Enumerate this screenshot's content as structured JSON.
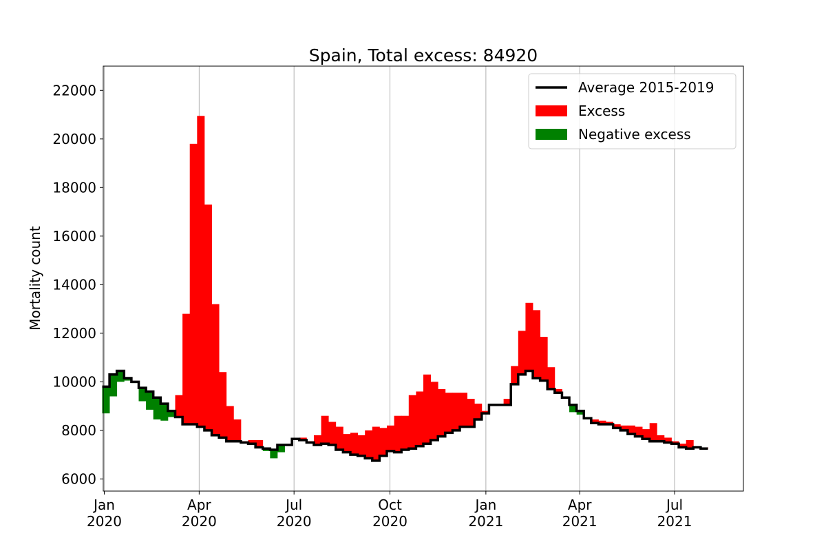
{
  "chart_data": {
    "type": "bar",
    "title": "Spain, Total excess: 84920",
    "xlabel": "",
    "ylabel": "Mortality count",
    "xlim": [
      "2019-12-31",
      "2021-09-05"
    ],
    "ylim": [
      5500,
      23000
    ],
    "grid": "x",
    "yticks": [
      6000,
      8000,
      10000,
      12000,
      14000,
      16000,
      18000,
      20000,
      22000
    ],
    "xticks": [
      {
        "date": "2020-01-01",
        "label": [
          "Jan",
          "2020"
        ]
      },
      {
        "date": "2020-04-01",
        "label": [
          "Apr",
          "2020"
        ]
      },
      {
        "date": "2020-07-01",
        "label": [
          "Jul",
          "2020"
        ]
      },
      {
        "date": "2020-10-01",
        "label": [
          "Oct",
          "2020"
        ]
      },
      {
        "date": "2021-01-01",
        "label": [
          "Jan",
          "2021"
        ]
      },
      {
        "date": "2021-04-01",
        "label": [
          "Apr",
          "2021"
        ]
      },
      {
        "date": "2021-07-01",
        "label": [
          "Jul",
          "2021"
        ]
      }
    ],
    "legend": {
      "position": "top-right",
      "entries": [
        {
          "label": "Average 2015-2019",
          "kind": "line",
          "color": "#000000"
        },
        {
          "label": "Excess",
          "kind": "patch",
          "color": "#ff0000"
        },
        {
          "label": "Negative excess",
          "kind": "patch",
          "color": "#008000"
        }
      ]
    },
    "colors": {
      "average": "#000000",
      "excess": "#ff0000",
      "negative": "#008000"
    },
    "week_start": "2019-12-30",
    "week_length_days": 7,
    "series": [
      {
        "name": "Average 2015-2019",
        "values": [
          9800,
          10300,
          10450,
          10150,
          10000,
          9750,
          9600,
          9350,
          9100,
          8800,
          8550,
          8250,
          8250,
          8150,
          8000,
          7800,
          7700,
          7550,
          7550,
          7500,
          7450,
          7300,
          7250,
          7200,
          7400,
          7400,
          7650,
          7600,
          7500,
          7400,
          7450,
          7400,
          7200,
          7100,
          7000,
          6950,
          6850,
          6750,
          6950,
          7150,
          7100,
          7200,
          7250,
          7350,
          7450,
          7600,
          7750,
          7900,
          8000,
          8150,
          8150,
          8450,
          8700,
          9050,
          9050,
          9050,
          9900,
          10300,
          10450,
          10150,
          10050,
          9700,
          9550,
          9350,
          9050,
          8800,
          8500,
          8300,
          8250,
          8250,
          8100,
          8000,
          7850,
          7750,
          7650,
          7550,
          7550,
          7500,
          7450,
          7300,
          7250,
          7300,
          7250
        ]
      },
      {
        "name": "",
        "values": [
          8700,
          9400,
          10000,
          10050,
          9950,
          9200,
          8850,
          8450,
          8400,
          8550,
          9450,
          12800,
          19800,
          20950,
          17300,
          13200,
          10400,
          9000,
          8450,
          7550,
          7600,
          7600,
          7150,
          6850,
          7100,
          7400,
          7650,
          7700,
          7550,
          7800,
          8600,
          8350,
          8150,
          7850,
          7900,
          7800,
          8000,
          8150,
          8100,
          8200,
          8600,
          8600,
          9450,
          9600,
          10300,
          10000,
          9700,
          9550,
          9550,
          9550,
          9300,
          9100,
          8800,
          9050,
          9050,
          9300,
          10650,
          12100,
          13250,
          12950,
          11850,
          10600,
          9700,
          9300,
          8750,
          8650,
          8500,
          8450,
          8400,
          8350,
          8250,
          8200,
          8200,
          8150,
          8050,
          8300,
          7800,
          7700,
          7550,
          7450,
          7600,
          7300,
          7300
        ]
      }
    ]
  }
}
